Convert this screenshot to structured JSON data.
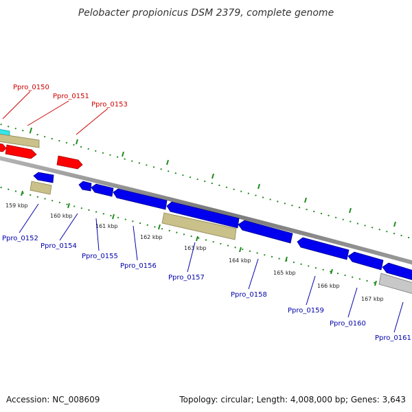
{
  "title": "Pelobacter propionicus DSM 2379, complete genome",
  "footer": {
    "accession": "Accession: NC_008609",
    "summary": "Topology: circular; Length: 4,008,000 bp; Genes: 3,643"
  },
  "colors": {
    "forward_label": "#cc0000",
    "reverse_label": "#0000aa",
    "gene_red": "#ff0000",
    "gene_blue": "#0000ee",
    "gene_tan": "#c9c08a",
    "gene_gray": "#c8c8c8",
    "gene_cyan": "#33e6e6",
    "backbone": "#888888",
    "tick_green": "#1f8a1f"
  },
  "forward_genes": [
    {
      "label": "Ppro_0150"
    },
    {
      "label": "Ppro_0151"
    },
    {
      "label": "Ppro_0153"
    }
  ],
  "reverse_genes": [
    {
      "label": "Ppro_0152"
    },
    {
      "label": "Ppro_0154"
    },
    {
      "label": "Ppro_0155"
    },
    {
      "label": "Ppro_0156"
    },
    {
      "label": "Ppro_0157"
    },
    {
      "label": "Ppro_0158"
    },
    {
      "label": "Ppro_0159"
    },
    {
      "label": "Ppro_0160"
    },
    {
      "label": "Ppro_0161"
    }
  ],
  "kbp_ticks": [
    "159 kbp",
    "160 kbp",
    "161 kbp",
    "162 kbp",
    "163 kbp",
    "164 kbp",
    "165 kbp",
    "166 kbp",
    "167 kbp"
  ]
}
